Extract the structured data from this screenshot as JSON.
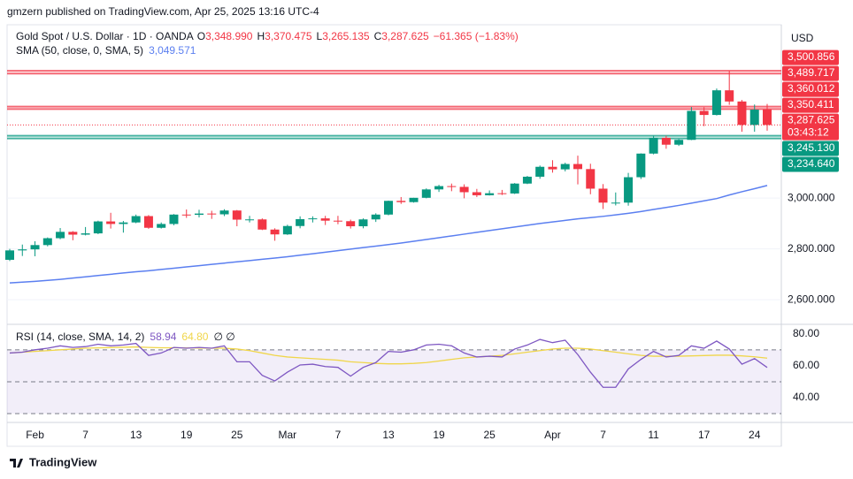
{
  "header": {
    "published": "gmzern published on TradingView.com, Apr 25, 2025 13:16 UTC-4",
    "brand": "TradingView"
  },
  "chart_data": [
    {
      "type": "candlestick",
      "title": "Gold Spot / U.S. Dollar · 1D · OANDA",
      "ohlc_legend": [
        {
          "label": "O",
          "value": "3,348.990"
        },
        {
          "label": "H",
          "value": "3,370.475"
        },
        {
          "label": "L",
          "value": "3,265.135"
        },
        {
          "label": "C",
          "value": "3,287.625"
        }
      ],
      "change": "−61.365 (−1.83%)",
      "axis_unit": "USD",
      "categories": [
        null,
        null,
        "Feb",
        null,
        null,
        null,
        "7",
        null,
        null,
        null,
        "13",
        null,
        null,
        null,
        "19",
        null,
        null,
        null,
        "25",
        null,
        null,
        null,
        "Mar",
        null,
        null,
        null,
        "7",
        null,
        null,
        null,
        "13",
        null,
        null,
        null,
        "19",
        null,
        null,
        null,
        "25",
        null,
        null,
        null,
        null,
        "Apr",
        null,
        null,
        null,
        "7",
        null,
        null,
        null,
        "11",
        null,
        null,
        null,
        "17",
        null,
        null,
        null,
        "24",
        null
      ],
      "open": [
        2757,
        2794,
        2798,
        2815,
        2842,
        2867,
        2856,
        2861,
        2908,
        2898,
        2904,
        2929,
        2883,
        2898,
        2935,
        2934,
        2939,
        2936,
        2951,
        2915,
        2916,
        2876,
        2857,
        2890,
        2917,
        2920,
        2911,
        2909,
        2889,
        2916,
        2935,
        2989,
        2984,
        3001,
        3034,
        3047,
        3044,
        3023,
        3011,
        3019,
        3018,
        3057,
        3084,
        3123,
        3113,
        3134,
        3114,
        3037,
        2982,
        2982,
        3082,
        3175,
        3237,
        3210,
        3229,
        3343,
        3327,
        3424,
        3380,
        3288,
        3348.99
      ],
      "high": [
        2800,
        2817,
        2830,
        2845,
        2882,
        2870,
        2886,
        2911,
        2942,
        2910,
        2935,
        2933,
        2904,
        2937,
        2955,
        2954,
        2950,
        2956,
        2953,
        2930,
        2920,
        2881,
        2895,
        2928,
        2928,
        2930,
        2930,
        2915,
        2920,
        2940,
        2990,
        3004,
        3001,
        3038,
        3052,
        3057,
        3054,
        3036,
        3030,
        3032,
        3059,
        3087,
        3128,
        3149,
        3139,
        3167,
        3135,
        3055,
        3022,
        3099,
        3176,
        3245,
        3245,
        3232,
        3358,
        3357,
        3431,
        3500.856,
        3386,
        3368,
        3370.475
      ],
      "low": [
        2752,
        2772,
        2771,
        2810,
        2838,
        2834,
        2853,
        2858,
        2880,
        2864,
        2901,
        2879,
        2880,
        2893,
        2922,
        2924,
        2918,
        2929,
        2889,
        2904,
        2874,
        2832,
        2855,
        2881,
        2904,
        2894,
        2897,
        2880,
        2881,
        2906,
        2932,
        2977,
        2982,
        2999,
        3024,
        3027,
        2999,
        3004,
        3010,
        3012,
        3016,
        3055,
        3076,
        3100,
        3105,
        3054,
        3015,
        2957,
        2971,
        2970,
        3075,
        3172,
        3194,
        3205,
        3228,
        3283,
        3325,
        3367,
        3261,
        3261,
        3265.135
      ],
      "close": [
        2794,
        2798,
        2815,
        2842,
        2867,
        2856,
        2861,
        2908,
        2898,
        2904,
        2929,
        2883,
        2898,
        2935,
        2934,
        2939,
        2936,
        2951,
        2915,
        2916,
        2876,
        2857,
        2890,
        2917,
        2920,
        2911,
        2909,
        2889,
        2916,
        2935,
        2989,
        2984,
        3001,
        3034,
        3047,
        3044,
        3023,
        3011,
        3019,
        3018,
        3057,
        3084,
        3123,
        3113,
        3134,
        3114,
        3037,
        2982,
        2982,
        3082,
        3175,
        3237,
        3210,
        3229,
        3343,
        3327,
        3424,
        3380,
        3288,
        3348,
        3287.625
      ],
      "up_color": "#089981",
      "down_color": "#f23645",
      "series": [
        {
          "name": "SMA (50, close, 0, SMA, 5)",
          "value_label": "3,049.571",
          "color": "#5b7ff0",
          "values": [
            2666,
            2669,
            2672,
            2676,
            2680,
            2685,
            2690,
            2695,
            2700,
            2705,
            2710,
            2714,
            2719,
            2724,
            2729,
            2734,
            2739,
            2744,
            2749,
            2754,
            2759,
            2764,
            2769,
            2775,
            2781,
            2787,
            2793,
            2799,
            2805,
            2811,
            2817,
            2823,
            2830,
            2837,
            2844,
            2851,
            2858,
            2865,
            2872,
            2879,
            2886,
            2893,
            2900,
            2906,
            2912,
            2918,
            2923,
            2928,
            2934,
            2940,
            2947,
            2955,
            2963,
            2971,
            2980,
            2989,
            2998,
            3012,
            3025,
            3037,
            3049.571
          ]
        }
      ],
      "price_lines": [
        {
          "value": 3500.856,
          "label": "3,500.856",
          "color": "#f23645"
        },
        {
          "value": 3489.717,
          "label": "3,489.717",
          "color": "#f23645"
        },
        {
          "value": 3360.012,
          "label": "3,360.012",
          "color": "#f23645"
        },
        {
          "value": 3350.411,
          "label": "3,350.411",
          "color": "#f23645"
        },
        {
          "value": 3245.13,
          "label": "3,245.130",
          "color": "#089981"
        },
        {
          "value": 3234.64,
          "label": "3,234.640",
          "color": "#089981"
        }
      ],
      "last_price": {
        "value": 3287.625,
        "label": "3,287.625",
        "countdown": "03:43:12",
        "color": "#f23645"
      },
      "ylim": [
        2510,
        3682
      ],
      "yticks": [
        {
          "value": 2600,
          "label": "2,600.000"
        },
        {
          "value": 2800,
          "label": "2,800.000"
        },
        {
          "value": 3000,
          "label": "3,000.000"
        }
      ],
      "grid": true
    },
    {
      "type": "line",
      "title": "RSI (14, close, SMA, 14, 2)",
      "legend_extra": "∅ ∅",
      "series": [
        {
          "value_label": "58.94",
          "color": "#7e57c2",
          "values": [
            68,
            68.5,
            70,
            71,
            72.5,
            71.5,
            72,
            73.5,
            72.5,
            73,
            74,
            66.5,
            68,
            71.5,
            71,
            71.5,
            71,
            72.5,
            62.5,
            62.5,
            54,
            50.5,
            56,
            60.5,
            61,
            59.5,
            59,
            53.5,
            59,
            62,
            69,
            68.5,
            70,
            73,
            73.5,
            72.5,
            68,
            65.5,
            66,
            65.5,
            70.5,
            73,
            76.5,
            74.5,
            76,
            67,
            56,
            46.5,
            46.5,
            58,
            64,
            69,
            65.5,
            66.5,
            72.5,
            71,
            75.5,
            70.5,
            61,
            64.5,
            58.94
          ]
        },
        {
          "value_label": "64.80",
          "color": "#f0d64a",
          "values": [
            68,
            68.5,
            69,
            69.5,
            70,
            70.5,
            71,
            71.2,
            71.4,
            71.6,
            71.8,
            71.5,
            71.3,
            71.3,
            71.2,
            71.1,
            71,
            71,
            70.5,
            69.5,
            68,
            66.5,
            65.5,
            65,
            64.5,
            64,
            63.5,
            62.5,
            62,
            61.5,
            61.2,
            61.2,
            61.5,
            62,
            63,
            64,
            65,
            65.5,
            66,
            66.5,
            67.5,
            68.5,
            69.5,
            70.5,
            71,
            71,
            70.5,
            69.5,
            68.5,
            67.5,
            66.5,
            66,
            66,
            66,
            66.2,
            66.4,
            66.6,
            66.6,
            66.2,
            65.6,
            64.8
          ]
        }
      ],
      "bands": [
        30,
        50,
        70
      ],
      "band_fill": "#7e57c2",
      "ylim": [
        25.6,
        84.3
      ],
      "yticks": [
        {
          "value": 40,
          "label": "40.00"
        },
        {
          "value": 60,
          "label": "60.00"
        },
        {
          "value": 80,
          "label": "80.00"
        }
      ]
    }
  ]
}
